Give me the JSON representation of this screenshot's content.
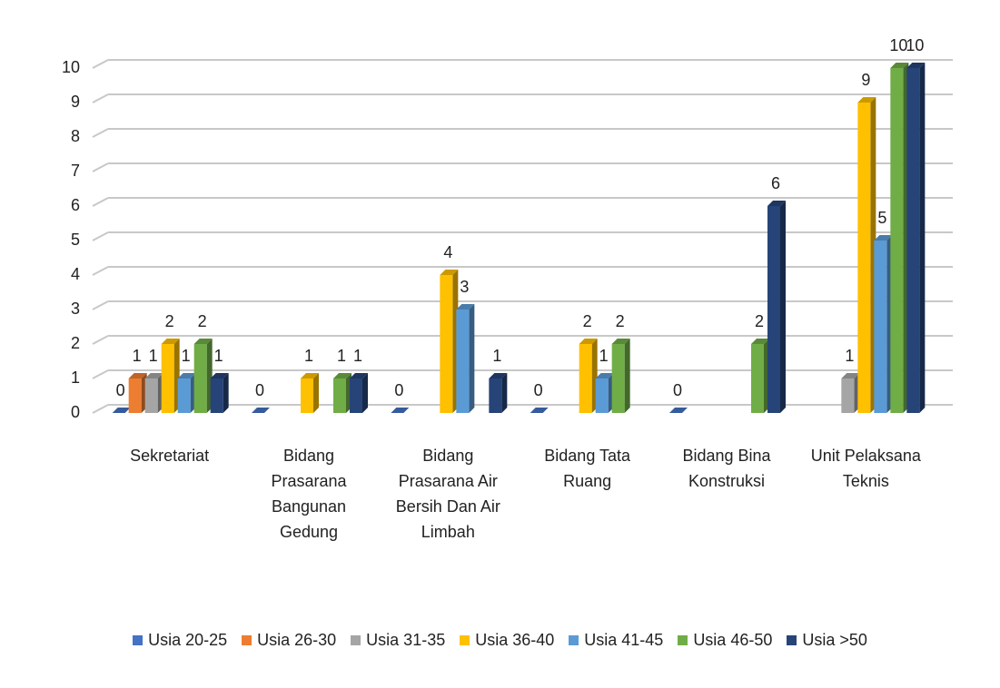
{
  "chart_data": {
    "type": "bar",
    "categories": [
      "Sekretariat",
      "Bidang Prasarana Bangunan Gedung",
      "Bidang Prasarana Air Bersih Dan Air Limbah",
      "Bidang Tata Ruang",
      "Bidang Bina Konstruksi",
      "Unit Pelaksana Teknis"
    ],
    "series": [
      {
        "name": "Usia 20-25",
        "color": "#4472c4",
        "values": [
          0,
          0,
          0,
          0,
          0,
          null
        ]
      },
      {
        "name": "Usia 26-30",
        "color": "#ed7d31",
        "values": [
          1,
          null,
          null,
          null,
          null,
          null
        ]
      },
      {
        "name": "Usia 31-35",
        "color": "#a5a5a5",
        "values": [
          1,
          null,
          null,
          null,
          null,
          1
        ]
      },
      {
        "name": "Usia 36-40",
        "color": "#ffc000",
        "values": [
          2,
          1,
          4,
          2,
          null,
          9
        ]
      },
      {
        "name": "Usia 41-45",
        "color": "#5b9bd5",
        "values": [
          1,
          null,
          3,
          1,
          null,
          5
        ]
      },
      {
        "name": "Usia 46-50",
        "color": "#70ad47",
        "values": [
          2,
          1,
          null,
          2,
          2,
          10
        ]
      },
      {
        "name": "Usia >50",
        "color": "#264478",
        "values": [
          1,
          1,
          1,
          null,
          6,
          10
        ]
      }
    ],
    "ylim": [
      0,
      10
    ],
    "yticks": [
      0,
      1,
      2,
      3,
      4,
      5,
      6,
      7,
      8,
      9,
      10
    ],
    "grid": true,
    "legend": "bottom"
  }
}
